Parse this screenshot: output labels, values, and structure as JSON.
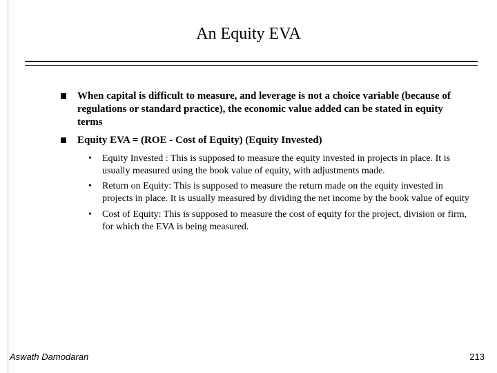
{
  "title": "An Equity EVA",
  "bullets": [
    "When capital is difficult to measure, and leverage is not a choice variable (because of regulations or standard practice), the economic value added can be stated in equity terms",
    "Equity EVA = (ROE - Cost of Equity) (Equity Invested)"
  ],
  "subbullets": [
    "Equity Invested : This is supposed to measure the equity invested in projects in place. It is usually measured using the book value of equity, with adjustments made.",
    "Return on Equity: This is supposed to measure the return made on the equity invested in projects in place. It is usually measured by dividing the net income by the book value of equity",
    "Cost of Equity: This is supposed to measure the cost of equity for the project, division or firm, for which the EVA is being measured."
  ],
  "author": "Aswath Damodaran",
  "page": "213",
  "colors": {
    "text": "#000000",
    "background": "#ffffff",
    "stripe_a": "#f2f2f2",
    "stripe_b": "#fafafa"
  },
  "fonts": {
    "title_size_pt": 24,
    "body_size_pt": 15,
    "sub_size_pt": 14,
    "footer_size_pt": 13
  }
}
